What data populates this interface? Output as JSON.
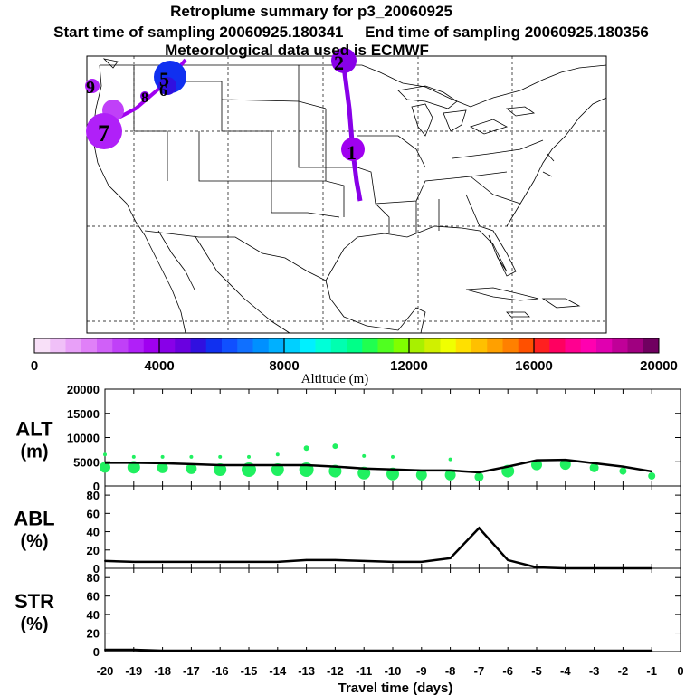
{
  "titles": {
    "line1": "Retroplume summary for p3_20060925",
    "line2": "Start time of sampling 20060925.180341     End time of sampling 20060925.180356",
    "line3": "Meteorological data used is ECMWF"
  },
  "colorbar": {
    "tick_labels": [
      "0",
      "4000",
      "8000",
      "12000",
      "16000",
      "20000"
    ],
    "label": "Altitude (m)",
    "colors": [
      "#f8e0f8",
      "#f0c0f8",
      "#e8a0f8",
      "#e080f8",
      "#d060f8",
      "#c040f8",
      "#b020f8",
      "#a000f0",
      "#8800e8",
      "#6a00e0",
      "#3010e0",
      "#1030f0",
      "#1050ff",
      "#1070ff",
      "#0090ff",
      "#00b0ff",
      "#00d0ff",
      "#00f0ff",
      "#00ffd8",
      "#00ffb0",
      "#00ff88",
      "#20ff50",
      "#50ff20",
      "#80ff00",
      "#a8f000",
      "#d0f000",
      "#f0ff00",
      "#ffe000",
      "#ffc000",
      "#ffa000",
      "#ff8000",
      "#ff5000",
      "#ff2020",
      "#ff0060",
      "#ff0090",
      "#ff00b0",
      "#e000b0",
      "#c00098",
      "#a00080",
      "#700060"
    ]
  },
  "map": {
    "labels": [
      {
        "text": "1",
        "name": "map-label-1"
      },
      {
        "text": "2",
        "name": "map-label-2"
      },
      {
        "text": "5",
        "name": "map-label-5"
      },
      {
        "text": "6",
        "name": "map-label-6"
      },
      {
        "text": "7",
        "name": "map-label-7"
      },
      {
        "text": "8",
        "name": "map-label-8"
      },
      {
        "text": "9",
        "name": "map-label-9"
      }
    ]
  },
  "chart_data": [
    {
      "type": "scatter",
      "panel": "ALT",
      "ylabel_line1": "ALT",
      "ylabel_line2": "(m)",
      "ylim": [
        0,
        20000
      ],
      "yticks": [
        "20000",
        "15000",
        "10000",
        "5000",
        "0"
      ],
      "x": [
        -20,
        -19,
        -18,
        -17,
        -16,
        -15,
        -14,
        -13,
        -12,
        -11,
        -10,
        -9,
        -8,
        -7,
        -6,
        -5,
        -4,
        -3,
        -2,
        -1
      ],
      "mean_altitude": [
        4800,
        4800,
        4700,
        4500,
        4300,
        4300,
        4300,
        4300,
        4000,
        3600,
        3400,
        3200,
        3200,
        2800,
        4000,
        5300,
        5400,
        4700,
        4000,
        3000
      ],
      "upper_altitude": [
        6500,
        6000,
        6000,
        6000,
        6000,
        6000,
        6500,
        7800,
        8200,
        6200,
        6000,
        null,
        5500,
        null,
        null,
        null,
        null,
        null,
        null,
        null
      ]
    },
    {
      "type": "line",
      "panel": "ABL",
      "ylabel_line1": "ABL",
      "ylabel_line2": "(%)",
      "ylim": [
        0,
        90
      ],
      "yticks": [
        "80",
        "60",
        "40",
        "20",
        "0"
      ],
      "x": [
        -20,
        -19,
        -18,
        -17,
        -16,
        -15,
        -14,
        -13,
        -12,
        -11,
        -10,
        -9,
        -8,
        -7,
        -6,
        -5,
        -4,
        -3,
        -2,
        -1
      ],
      "values": [
        8,
        7,
        7,
        7,
        7,
        7,
        7,
        9,
        9,
        8,
        7,
        7,
        11,
        44,
        9,
        1,
        0,
        0,
        0,
        0
      ]
    },
    {
      "type": "line",
      "panel": "STR",
      "ylabel_line1": "STR",
      "ylabel_line2": "(%)",
      "ylim": [
        0,
        90
      ],
      "yticks": [
        "80",
        "60",
        "40",
        "20",
        "0"
      ],
      "x": [
        -20,
        -19,
        -18,
        -17,
        -16,
        -15,
        -14,
        -13,
        -12,
        -11,
        -10,
        -9,
        -8,
        -7,
        -6,
        -5,
        -4,
        -3,
        -2,
        -1
      ],
      "values": [
        2,
        2,
        1,
        1,
        1,
        1,
        1,
        1,
        1,
        1,
        1,
        1,
        1,
        1,
        1,
        1,
        1,
        1,
        1,
        1
      ]
    }
  ],
  "xaxis": {
    "label": "Travel time (days)",
    "tick_labels": [
      "-20",
      "-19",
      "-18",
      "-17",
      "-16",
      "-15",
      "-14",
      "-13",
      "-12",
      "-11",
      "-10",
      "-9",
      "-8",
      "-7",
      "-6",
      "-5",
      "-4",
      "-3",
      "-2",
      "-1",
      "0"
    ]
  }
}
